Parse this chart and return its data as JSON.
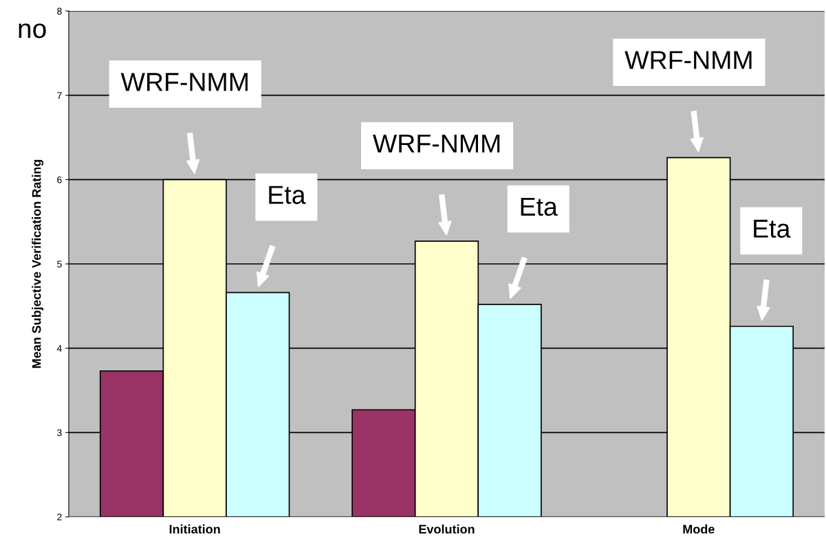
{
  "chart_data": {
    "type": "bar",
    "ylabel": "Mean Subjective Verification Rating",
    "categories": [
      "Initiation",
      "Evolution",
      "Mode"
    ],
    "series": [
      {
        "color": "#993366",
        "values": [
          3.73,
          3.27,
          null
        ]
      },
      {
        "color": "#ffffcc",
        "values": [
          6.0,
          5.27,
          6.26
        ]
      },
      {
        "color": "#ccffff",
        "values": [
          4.66,
          4.52,
          4.26
        ]
      }
    ],
    "ylim": [
      2,
      8
    ],
    "yticks": [
      2,
      3,
      4,
      5,
      6,
      7,
      8
    ],
    "grid": "y",
    "legend": false,
    "annotations": [
      "no",
      "WRF-NMM",
      "Eta",
      "WRF-NMM",
      "Eta",
      "WRF-NMM",
      "Eta"
    ]
  }
}
